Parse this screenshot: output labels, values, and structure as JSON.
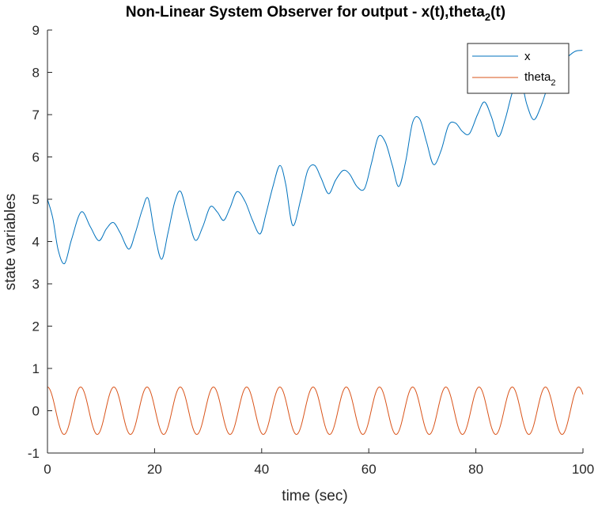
{
  "chart_data": {
    "type": "line",
    "title": "Non-Linear System Observer for output - x(t),theta",
    "title_subscript": "2",
    "title_suffix": "(t)",
    "xlabel": "time (sec)",
    "ylabel": "state variables",
    "xlim": [
      0,
      100
    ],
    "ylim": [
      -1,
      9
    ],
    "xticks": [
      0,
      20,
      40,
      60,
      80,
      100
    ],
    "yticks": [
      -1,
      0,
      1,
      2,
      3,
      4,
      5,
      6,
      7,
      8,
      9
    ],
    "grid": false,
    "legend_position": "top-right",
    "series": [
      {
        "name": "x",
        "color": "#0072BD",
        "x": [
          0,
          1,
          2,
          3.2,
          4.5,
          6.3,
          8,
          9.6,
          11,
          12.3,
          13.6,
          15.2,
          16.4,
          17.7,
          18.8,
          20,
          21.3,
          22.5,
          23.8,
          24.9,
          26.2,
          27.6,
          29,
          30.4,
          31.7,
          32.9,
          34.1,
          35.4,
          36.9,
          38.3,
          39.7,
          40.8,
          42.1,
          43.4,
          44.5,
          45.8,
          47.3,
          48.6,
          49.9,
          51.1,
          52.5,
          53.8,
          55.2,
          56.4,
          57.8,
          59.2,
          60.5,
          61.8,
          63.1,
          64.4,
          65.6,
          66.9,
          68.2,
          69.5,
          70.8,
          72.1,
          73.5,
          74.9,
          76.2,
          77.5,
          78.8,
          80.3,
          81.6,
          82.9,
          84.2,
          85.5,
          86.8,
          88.2,
          89.5,
          90.8,
          92.1,
          93.4,
          94.7,
          96,
          97.3,
          98.6,
          99.9
        ],
        "values": [
          5.0,
          4.55,
          3.8,
          3.48,
          4.05,
          4.7,
          4.35,
          4.02,
          4.3,
          4.45,
          4.2,
          3.82,
          4.2,
          4.75,
          5.02,
          4.2,
          3.58,
          4.2,
          4.95,
          5.18,
          4.6,
          4.03,
          4.35,
          4.82,
          4.7,
          4.5,
          4.8,
          5.18,
          4.95,
          4.5,
          4.18,
          4.65,
          5.3,
          5.8,
          5.35,
          4.38,
          5.0,
          5.68,
          5.8,
          5.5,
          5.13,
          5.45,
          5.68,
          5.6,
          5.3,
          5.25,
          5.85,
          6.48,
          6.35,
          5.8,
          5.3,
          5.9,
          6.82,
          6.9,
          6.35,
          5.82,
          6.15,
          6.75,
          6.8,
          6.6,
          6.55,
          7.0,
          7.3,
          6.95,
          6.48,
          6.9,
          7.52,
          7.9,
          7.25,
          6.88,
          7.18,
          7.65,
          8.0,
          8.2,
          8.38,
          8.5,
          8.52
        ]
      },
      {
        "name": "theta",
        "name_subscript": "2",
        "color": "#D95319",
        "amplitude": 0.56,
        "period": 6.2,
        "phase": 1.57
      }
    ]
  }
}
